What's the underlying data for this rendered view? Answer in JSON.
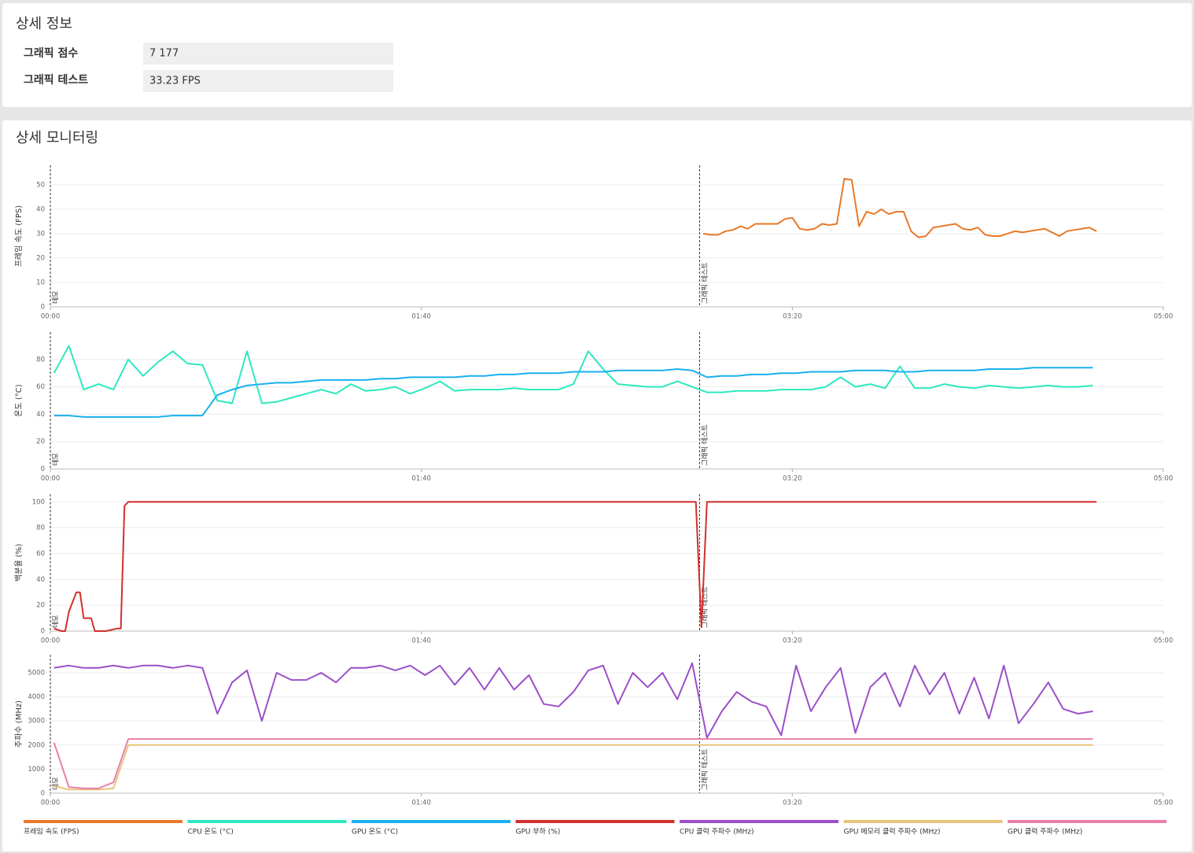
{
  "details": {
    "title": "상세 정보",
    "rows": [
      {
        "label": "그래픽 점수",
        "value": "7 177"
      },
      {
        "label": "그래픽 테스트",
        "value": "33.23 FPS"
      }
    ]
  },
  "monitoring": {
    "title": "상세 모니터링",
    "markers": [
      {
        "x": 0,
        "label": "데모"
      },
      {
        "x": 175,
        "label": "그래픽 테스트"
      }
    ]
  },
  "chart_data": [
    {
      "type": "line",
      "ylabel": "프레임 속도 (FPS)",
      "xlim": [
        0,
        300
      ],
      "xticks": [
        {
          "value": 0,
          "label": "00:00"
        },
        {
          "value": 100,
          "label": "01:40"
        },
        {
          "value": 200,
          "label": "03:20"
        },
        {
          "value": 300,
          "label": "05:00"
        }
      ],
      "ylim": [
        0,
        58
      ],
      "yticks": [
        0,
        10,
        20,
        30,
        40,
        50
      ],
      "grid": true,
      "x": [
        176,
        178,
        180,
        182,
        184,
        186,
        188,
        190,
        192,
        194,
        196,
        198,
        200,
        202,
        204,
        206,
        208,
        210,
        212,
        214,
        216,
        218,
        220,
        222,
        224,
        226,
        228,
        230,
        232,
        234,
        236,
        238,
        240,
        242,
        244,
        246,
        248,
        250,
        252,
        254,
        256,
        258,
        260,
        262,
        264,
        266,
        268,
        270,
        272,
        274,
        276,
        278,
        280,
        282
      ],
      "series": [
        {
          "name": "프레임 속도 (FPS)",
          "color": "#e8792a",
          "values": [
            30,
            29.5,
            29.5,
            31,
            31.5,
            33,
            32,
            34,
            34,
            34,
            34,
            36,
            36.5,
            32,
            31.5,
            32,
            34,
            33.5,
            34,
            52.5,
            52,
            33,
            39,
            38,
            40,
            38,
            39,
            39,
            31,
            28.5,
            29,
            32.5,
            33,
            33.5,
            34,
            32,
            31.5,
            32.5,
            29.5,
            29,
            29,
            30,
            31,
            30.5,
            31,
            31.5,
            32,
            30.5,
            29,
            31,
            31.5,
            32,
            32.5,
            31
          ]
        }
      ]
    },
    {
      "type": "line",
      "ylabel": "온도 (°C)",
      "xlim": [
        0,
        300
      ],
      "xticks": [
        {
          "value": 0,
          "label": "00:00"
        },
        {
          "value": 100,
          "label": "01:40"
        },
        {
          "value": 200,
          "label": "03:20"
        },
        {
          "value": 300,
          "label": "05:00"
        }
      ],
      "ylim": [
        0,
        100
      ],
      "yticks": [
        0,
        20,
        40,
        60,
        80
      ],
      "grid": true,
      "x": [
        1,
        5,
        9,
        13,
        17,
        21,
        25,
        29,
        33,
        37,
        41,
        45,
        49,
        53,
        57,
        61,
        65,
        69,
        73,
        77,
        81,
        85,
        89,
        93,
        97,
        101,
        105,
        109,
        113,
        117,
        121,
        125,
        129,
        133,
        137,
        141,
        145,
        149,
        153,
        157,
        161,
        165,
        169,
        173,
        177,
        181,
        185,
        189,
        193,
        197,
        201,
        205,
        209,
        213,
        217,
        221,
        225,
        229,
        233,
        237,
        241,
        245,
        249,
        253,
        257,
        261,
        265,
        269,
        273,
        277,
        281
      ],
      "series": [
        {
          "name": "CPU 온도 (°C)",
          "color": "#2de8c0",
          "values": [
            70,
            90,
            58,
            62,
            58,
            80,
            68,
            78,
            86,
            77,
            76,
            50,
            48,
            86,
            48,
            49,
            52,
            55,
            58,
            55,
            62,
            57,
            58,
            60,
            55,
            59,
            64,
            57,
            58,
            58,
            58,
            59,
            58,
            58,
            58,
            62,
            86,
            73,
            62,
            61,
            60,
            60,
            64,
            60,
            56,
            56,
            57,
            57,
            57,
            58,
            58,
            58,
            60,
            67,
            60,
            62,
            59,
            75,
            59,
            59,
            62,
            60,
            59,
            61,
            60,
            59,
            60,
            61,
            60,
            60,
            61
          ]
        },
        {
          "name": "GPU 온도 (°C)",
          "color": "#1ab0f0",
          "values": [
            39,
            39,
            38,
            38,
            38,
            38,
            38,
            38,
            39,
            39,
            39,
            54,
            58,
            61,
            62,
            63,
            63,
            64,
            65,
            65,
            65,
            65,
            66,
            66,
            67,
            67,
            67,
            67,
            68,
            68,
            69,
            69,
            70,
            70,
            70,
            71,
            71,
            71,
            72,
            72,
            72,
            72,
            73,
            72,
            67,
            68,
            68,
            69,
            69,
            70,
            70,
            71,
            71,
            71,
            72,
            72,
            72,
            71,
            71,
            72,
            72,
            72,
            72,
            73,
            73,
            73,
            74,
            74,
            74,
            74,
            74
          ]
        }
      ]
    },
    {
      "type": "line",
      "ylabel": "백분율 (%)",
      "xlim": [
        0,
        300
      ],
      "xticks": [
        {
          "value": 0,
          "label": "00:00"
        },
        {
          "value": 100,
          "label": "01:40"
        },
        {
          "value": 200,
          "label": "03:20"
        },
        {
          "value": 300,
          "label": "05:00"
        }
      ],
      "ylim": [
        0,
        106
      ],
      "yticks": [
        0,
        20,
        40,
        60,
        80,
        100
      ],
      "grid": true,
      "x": [
        1,
        3,
        4,
        5,
        7,
        8,
        9,
        11,
        12,
        15,
        18,
        19,
        20,
        21,
        174,
        175.5,
        177,
        282
      ],
      "series": [
        {
          "name": "GPU 부하 (%)",
          "color": "#d0302e",
          "values": [
            2,
            0,
            0,
            15,
            30,
            30,
            10,
            10,
            0,
            0,
            2,
            2,
            97,
            100,
            100,
            3,
            100,
            100
          ]
        }
      ]
    },
    {
      "type": "line",
      "ylabel": "주파수 (MHz)",
      "xlim": [
        0,
        300
      ],
      "xticks": [
        {
          "value": 0,
          "label": "00:00"
        },
        {
          "value": 100,
          "label": "01:40"
        },
        {
          "value": 200,
          "label": "03:20"
        },
        {
          "value": 300,
          "label": "05:00"
        }
      ],
      "ylim": [
        0,
        5750
      ],
      "yticks": [
        0,
        1000,
        2000,
        3000,
        4000,
        5000
      ],
      "grid": true,
      "x": [
        1,
        5,
        9,
        13,
        17,
        21,
        25,
        29,
        33,
        37,
        41,
        45,
        49,
        53,
        57,
        61,
        65,
        69,
        73,
        77,
        81,
        85,
        89,
        93,
        97,
        101,
        105,
        109,
        113,
        117,
        121,
        125,
        129,
        133,
        137,
        141,
        145,
        149,
        153,
        157,
        161,
        165,
        169,
        173,
        177,
        181,
        185,
        189,
        193,
        197,
        201,
        205,
        209,
        213,
        217,
        221,
        225,
        229,
        233,
        237,
        241,
        245,
        249,
        253,
        257,
        261,
        265,
        269,
        273,
        277,
        281
      ],
      "series": [
        {
          "name": "CPU 클럭 주파수 (MHz)",
          "color": "#9b4fc8",
          "values": [
            5200,
            5300,
            5200,
            5200,
            5300,
            5200,
            5300,
            5300,
            5200,
            5300,
            5200,
            3300,
            4600,
            5100,
            3000,
            5000,
            4700,
            4700,
            5000,
            4600,
            5200,
            5200,
            5300,
            5100,
            5300,
            4900,
            5300,
            4500,
            5200,
            4300,
            5200,
            4300,
            4900,
            3700,
            3600,
            4200,
            5100,
            5300,
            3700,
            5000,
            4400,
            5000,
            3900,
            5400,
            2300,
            3400,
            4200,
            3800,
            3600,
            2400,
            5300,
            3400,
            4400,
            5200,
            2500,
            4400,
            5000,
            3600,
            5300,
            4100,
            5000,
            3300,
            4800,
            3100,
            5300,
            2900,
            3700,
            4600,
            3500,
            3300,
            3400
          ]
        },
        {
          "name": "GPU 메모리 클럭 주파수 (MHz)",
          "color": "#e8c47a",
          "values": [
            300,
            150,
            150,
            150,
            200,
            2000,
            2000,
            2000,
            2000,
            2000,
            2000,
            2000,
            2000,
            2000,
            2000,
            2000,
            2000,
            2000,
            2000,
            2000,
            2000,
            2000,
            2000,
            2000,
            2000,
            2000,
            2000,
            2000,
            2000,
            2000,
            2000,
            2000,
            2000,
            2000,
            2000,
            2000,
            2000,
            2000,
            2000,
            2000,
            2000,
            2000,
            2000,
            2000,
            2000,
            2000,
            2000,
            2000,
            2000,
            2000,
            2000,
            2000,
            2000,
            2000,
            2000,
            2000,
            2000,
            2000,
            2000,
            2000,
            2000,
            2000,
            2000,
            2000,
            2000,
            2000,
            2000,
            2000,
            2000,
            2000,
            2000
          ]
        },
        {
          "name": "GPU 클럭 주파수 (MHz)",
          "color": "#e87fa8",
          "values": [
            2100,
            250,
            200,
            200,
            450,
            2250,
            2250,
            2250,
            2250,
            2250,
            2250,
            2250,
            2250,
            2250,
            2250,
            2250,
            2250,
            2250,
            2250,
            2250,
            2250,
            2250,
            2250,
            2250,
            2250,
            2250,
            2250,
            2250,
            2250,
            2250,
            2250,
            2250,
            2250,
            2250,
            2250,
            2250,
            2250,
            2250,
            2250,
            2250,
            2250,
            2250,
            2250,
            2250,
            2250,
            2250,
            2250,
            2250,
            2250,
            2250,
            2250,
            2250,
            2250,
            2250,
            2250,
            2250,
            2250,
            2250,
            2250,
            2250,
            2250,
            2250,
            2250,
            2250,
            2250,
            2250,
            2250,
            2250,
            2250,
            2250,
            2250
          ]
        }
      ]
    }
  ]
}
